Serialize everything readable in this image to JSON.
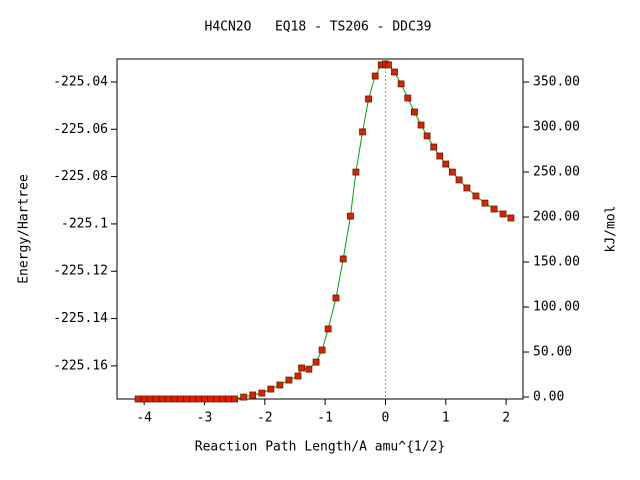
{
  "chart_data": {
    "type": "line",
    "title": "H4CN2O   EQ18 - TS206 - DDC39",
    "x_label": "Reaction Path Length/A amu^{1/2}",
    "y_label": "Energy/Hartree",
    "y2_label": "kJ/mol",
    "xlim": [
      -4.45,
      2.28
    ],
    "xticks": [
      -4,
      -3,
      -2,
      -1,
      0,
      1,
      2
    ],
    "ylim": [
      -225.174,
      -225.0303
    ],
    "yticks": [
      -225.04,
      -225.06,
      -225.08,
      -225.1,
      -225.12,
      -225.14,
      -225.16
    ],
    "y2lim": [
      -2.2,
      375.6
    ],
    "y2ticks": [
      {
        "value": 0,
        "label": "0.00"
      },
      {
        "value": 50,
        "label": "50.00"
      },
      {
        "value": 100,
        "label": "100.00"
      },
      {
        "value": 150,
        "label": "150.00"
      },
      {
        "value": 200,
        "label": "200.00"
      },
      {
        "value": 250,
        "label": "250.00"
      },
      {
        "value": 300,
        "label": "300.00"
      },
      {
        "value": 350,
        "label": "350.00"
      }
    ],
    "line_color": "#00a000",
    "marker_color": "#e02000",
    "x": [
      -4.1,
      -4.0,
      -3.9,
      -3.8,
      -3.7,
      -3.6,
      -3.5,
      -3.4,
      -3.3,
      -3.2,
      -3.1,
      -3.0,
      -2.9,
      -2.8,
      -2.7,
      -2.6,
      -2.5,
      -2.35,
      -2.2,
      -2.05,
      -1.9,
      -1.75,
      -1.6,
      -1.45,
      -1.39,
      -1.27,
      -1.15,
      -1.05,
      -0.95,
      -0.82,
      -0.7,
      -0.58,
      -0.49,
      -0.38,
      -0.28,
      -0.17,
      -0.07,
      0,
      0.05,
      0.15,
      0.26,
      0.37,
      0.48,
      0.59,
      0.69,
      0.8,
      0.9,
      1.0,
      1.11,
      1.22,
      1.35,
      1.5,
      1.65,
      1.8,
      1.95,
      2.08
    ],
    "values": [
      -225.174,
      -225.174,
      -225.174,
      -225.174,
      -225.174,
      -225.174,
      -225.174,
      -225.174,
      -225.174,
      -225.174,
      -225.174,
      -225.174,
      -225.174,
      -225.174,
      -225.174,
      -225.174,
      -225.174,
      -225.1732,
      -225.1723,
      -225.1715,
      -225.1698,
      -225.1681,
      -225.166,
      -225.1643,
      -225.1609,
      -225.1614,
      -225.1584,
      -225.1533,
      -225.1444,
      -225.1313,
      -225.1148,
      -225.0967,
      -225.0781,
      -225.0611,
      -225.0472,
      -225.0375,
      -225.0328,
      -225.0324,
      -225.0328,
      -225.0358,
      -225.0408,
      -225.0468,
      -225.0527,
      -225.0582,
      -225.0628,
      -225.0675,
      -225.0713,
      -225.0747,
      -225.0781,
      -225.0814,
      -225.0848,
      -225.0882,
      -225.0912,
      -225.0937,
      -225.0958,
      -225.0975
    ]
  }
}
